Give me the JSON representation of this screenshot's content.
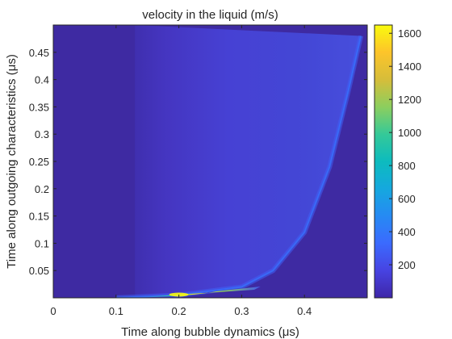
{
  "chart_data": {
    "type": "heatmap",
    "title": "velocity in the liquid (m/s)",
    "xlabel": "Time along bubble dynamics (μs)",
    "ylabel": "Time along outgoing characteristics (μs)",
    "xlim": [
      0,
      0.5
    ],
    "ylim": [
      0,
      0.5
    ],
    "xticks": [
      0,
      0.1,
      0.2,
      0.3,
      0.4
    ],
    "xtick_labels": [
      "0",
      "0.1",
      "0.2",
      "0.3",
      "0.4"
    ],
    "yticks": [
      0.05,
      0.1,
      0.15,
      0.2,
      0.25,
      0.3,
      0.35,
      0.4,
      0.45
    ],
    "ytick_labels": [
      "0.05",
      "0.1",
      "0.15",
      "0.2",
      "0.25",
      "0.3",
      "0.35",
      "0.4",
      "0.45"
    ],
    "colorbar": {
      "colormap": "parula",
      "range": [
        0,
        1650
      ],
      "ticks": [
        200,
        400,
        600,
        800,
        1000,
        1200,
        1400,
        1600
      ],
      "tick_labels": [
        "200",
        "400",
        "600",
        "800",
        "1000",
        "1200",
        "1400",
        "1600"
      ]
    },
    "field": {
      "background_value": 20,
      "front_curve": {
        "description_points_x": [
          0.1,
          0.2,
          0.3,
          0.35,
          0.4,
          0.44,
          0.47,
          0.49
        ],
        "description_points_y": [
          0.0,
          0.005,
          0.02,
          0.05,
          0.12,
          0.24,
          0.38,
          0.48
        ]
      },
      "peak_value": 1620,
      "peak_location": [
        0.2,
        0.003
      ]
    }
  },
  "colors": {
    "background_field": "#3e2aa2",
    "axis": "#262626",
    "peak": "#f9fb0e"
  }
}
